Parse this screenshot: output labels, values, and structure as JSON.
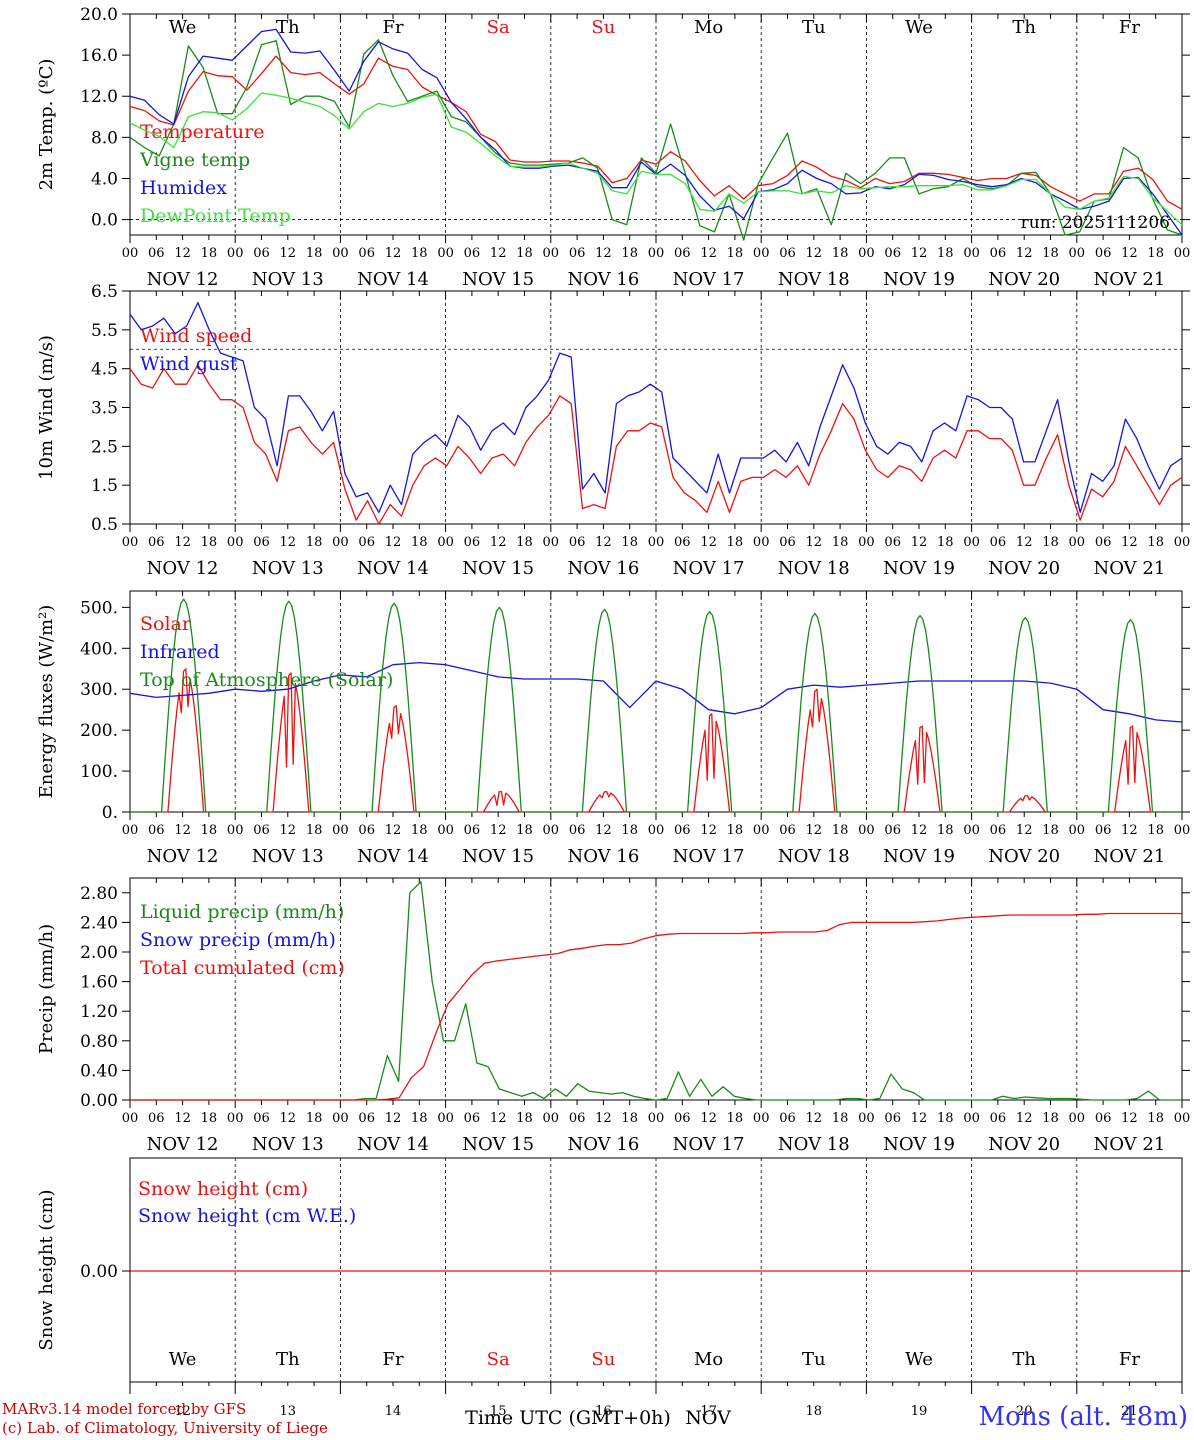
{
  "chart_data": [
    {
      "type": "line",
      "id": "temp",
      "ylabel": "2m Temp. (ºC)",
      "ylim": [
        -1.5,
        20
      ],
      "yticks": [
        "20.0",
        "16.0",
        "12.0",
        "8.0",
        "4.0",
        "0.0"
      ],
      "yticks_values": [
        20,
        16,
        12,
        8,
        4,
        0
      ],
      "ref_line": 0,
      "day_labels": [
        "We",
        "Th",
        "Fr",
        "Sa",
        "Su",
        "Mo",
        "Tu",
        "We",
        "Th",
        "Fr"
      ],
      "annotation": "run: 2025111206",
      "series": [
        {
          "name": "Temperature",
          "color": "#ee1111",
          "y": [
            11,
            10.6,
            9.6,
            9.2,
            12.5,
            14.4,
            14.0,
            13.9,
            12.6,
            14.2,
            15.9,
            14.3,
            14.1,
            14.3,
            13.2,
            12.2,
            13.2,
            15.7,
            14.9,
            14.6,
            12.9,
            12.1,
            11.4,
            10.5,
            8.3,
            7.6,
            5.8,
            5.6,
            5.6,
            5.7,
            5.7,
            5.5,
            5.2,
            3.6,
            4.0,
            5.8,
            5.4,
            6.6,
            5.7,
            3.8,
            2.3,
            3.3,
            2.0,
            3.3,
            3.5,
            4.3,
            5.7,
            5.1,
            4.2,
            3.8,
            3.1,
            4.0,
            3.5,
            3.7,
            4.5,
            4.5,
            4.4,
            4.1,
            3.8,
            4.0,
            4.0,
            4.5,
            4.3,
            3.2,
            2.5,
            1.8,
            2.5,
            2.5,
            4.7,
            5.0,
            3.9,
            1.8,
            1.0
          ]
        },
        {
          "name": "Vigne temp",
          "color": "#1a8a1a",
          "y": [
            8.0,
            7.0,
            6.2,
            9.3,
            16.9,
            14.8,
            10.3,
            10.3,
            12.9,
            17.0,
            17.4,
            11.2,
            12.0,
            12.0,
            11.5,
            9.0,
            16.1,
            17.5,
            14.0,
            11.5,
            12.0,
            12.5,
            10.0,
            9.5,
            8.0,
            6.5,
            5.5,
            5.3,
            5.3,
            5.4,
            5.5,
            6.0,
            5.0,
            0.0,
            -0.5,
            6.0,
            4.5,
            9.3,
            4.5,
            -0.6,
            -1.2,
            2.5,
            -2.0,
            3.5,
            6.0,
            8.4,
            2.5,
            3.0,
            -0.5,
            4.5,
            3.5,
            4.5,
            6.0,
            6.0,
            2.5,
            3.0,
            3.2,
            4.0,
            3.2,
            3.0,
            3.3,
            4.5,
            4.6,
            2.5,
            -1.5,
            -1.2,
            1.8,
            2.0,
            7.0,
            6.0,
            2.0,
            -1.0,
            -1.5
          ]
        },
        {
          "name": "Humidex",
          "color": "#1515dd",
          "y": [
            12,
            11.6,
            10.2,
            9.3,
            13.9,
            15.9,
            15.7,
            15.5,
            16.9,
            18.3,
            18.5,
            16.3,
            16.2,
            16.4,
            14.5,
            12.5,
            15.4,
            17.3,
            16.6,
            16.2,
            14.6,
            13.8,
            11.4,
            9.8,
            8.0,
            6.8,
            5.2,
            5.0,
            5.0,
            5.2,
            5.3,
            5.0,
            4.7,
            3.1,
            3.1,
            5.6,
            4.4,
            5.4,
            4.3,
            2.3,
            0.9,
            1.3,
            0.1,
            2.7,
            2.9,
            3.5,
            4.8,
            4.0,
            3.5,
            2.5,
            2.6,
            3.2,
            3.0,
            3.4,
            4.4,
            4.3,
            3.9,
            3.7,
            3.4,
            3.2,
            3.4,
            4.0,
            3.6,
            2.5,
            1.8,
            1.0,
            1.3,
            1.8,
            4.0,
            4.1,
            2.5,
            0.5,
            -1.5
          ]
        },
        {
          "name": "DewPoint Temp",
          "color": "#39e339",
          "y": [
            9.4,
            8.7,
            8.1,
            7.0,
            10.0,
            10.5,
            10.4,
            9.7,
            10.8,
            12.3,
            12.1,
            11.8,
            11.4,
            11.0,
            10.1,
            8.8,
            10.5,
            11.3,
            11.0,
            11.3,
            11.9,
            12.2,
            9.0,
            8.5,
            7.4,
            6.2,
            5.2,
            5.1,
            5.1,
            5.3,
            5.5,
            5.0,
            4.5,
            2.8,
            2.5,
            4.7,
            4.4,
            4.4,
            3.5,
            1.0,
            0.8,
            2.5,
            1.6,
            2.7,
            2.8,
            2.8,
            2.5,
            2.8,
            2.6,
            3.3,
            3.0,
            3.1,
            3.2,
            3.2,
            3.3,
            3.3,
            3.3,
            3.4,
            2.9,
            2.9,
            3.3,
            3.9,
            3.9,
            2.5,
            1.2,
            1.0,
            1.8,
            2.1,
            4.2,
            4.0,
            2.1,
            0.8,
            -0.5
          ]
        }
      ]
    },
    {
      "type": "line",
      "id": "wind",
      "ylabel": "10m Wind (m/s)",
      "ylim": [
        0.5,
        6.5
      ],
      "yticks": [
        "6.5",
        "5.5",
        "4.5",
        "3.5",
        "2.5",
        "1.5",
        "0.5"
      ],
      "yticks_values": [
        6.5,
        5.5,
        4.5,
        3.5,
        2.5,
        1.5,
        0.5
      ],
      "ref_line": 5,
      "series": [
        {
          "name": "Wind speed",
          "color": "#ee1111",
          "y": [
            4.5,
            4.1,
            4.0,
            4.5,
            4.1,
            4.1,
            4.6,
            4.1,
            3.7,
            3.7,
            3.5,
            2.6,
            2.3,
            1.6,
            2.9,
            3.0,
            2.6,
            2.3,
            2.6,
            1.4,
            0.6,
            1.1,
            0.5,
            1.0,
            0.7,
            1.5,
            2.0,
            2.2,
            2.0,
            2.5,
            2.2,
            1.8,
            2.2,
            2.3,
            2.0,
            2.6,
            3.0,
            3.3,
            3.8,
            3.6,
            0.9,
            1.0,
            0.9,
            2.5,
            2.9,
            2.9,
            3.1,
            3.0,
            1.7,
            1.3,
            1.1,
            0.8,
            1.6,
            0.8,
            1.6,
            1.7,
            1.7,
            1.9,
            1.7,
            2.0,
            1.5,
            2.3,
            2.9,
            3.6,
            3.2,
            2.4,
            1.9,
            1.7,
            2.0,
            1.9,
            1.6,
            2.2,
            2.4,
            2.2,
            2.9,
            2.9,
            2.7,
            2.7,
            2.4,
            1.5,
            1.5,
            2.2,
            2.8,
            1.5,
            0.6,
            1.4,
            1.2,
            1.6,
            2.5,
            2.0,
            1.5,
            1.0,
            1.5,
            1.7
          ]
        },
        {
          "name": "Wind gust",
          "color": "#1515dd",
          "y": [
            5.9,
            5.5,
            5.6,
            5.8,
            5.4,
            5.6,
            6.2,
            5.5,
            4.9,
            4.8,
            4.7,
            3.5,
            3.2,
            2.0,
            3.8,
            3.8,
            3.4,
            2.9,
            3.4,
            1.8,
            1.2,
            1.3,
            0.8,
            1.5,
            1.0,
            2.3,
            2.6,
            2.8,
            2.5,
            3.3,
            3.0,
            2.4,
            2.9,
            3.1,
            2.8,
            3.5,
            3.8,
            4.2,
            4.9,
            4.8,
            1.4,
            1.8,
            1.3,
            3.6,
            3.8,
            3.9,
            4.1,
            3.9,
            2.2,
            1.9,
            1.6,
            1.3,
            2.3,
            1.3,
            2.2,
            2.2,
            2.2,
            2.4,
            2.1,
            2.6,
            2.0,
            3.0,
            3.8,
            4.6,
            4.0,
            3.1,
            2.5,
            2.3,
            2.6,
            2.5,
            2.1,
            2.9,
            3.1,
            2.9,
            3.8,
            3.7,
            3.5,
            3.5,
            3.2,
            2.1,
            2.1,
            2.9,
            3.7,
            2.1,
            0.8,
            1.8,
            1.6,
            2.0,
            3.2,
            2.7,
            2.0,
            1.4,
            2.0,
            2.2
          ]
        }
      ]
    },
    {
      "type": "line",
      "id": "energy",
      "ylabel": "Energy fluxes (W/m²)",
      "ylim": [
        0,
        540
      ],
      "yticks": [
        "500.",
        "400.",
        "300.",
        "200.",
        "100.",
        "0."
      ],
      "yticks_values": [
        500,
        400,
        300,
        200,
        100,
        0
      ],
      "series": [
        {
          "name": "Solar",
          "color": "#ee1111",
          "peaks": [
            350,
            340,
            260,
            50,
            50,
            240,
            300,
            210,
            40,
            210
          ]
        },
        {
          "name": "Infrared",
          "color": "#1515dd",
          "y": [
            290,
            280,
            285,
            290,
            300,
            295,
            300,
            320,
            335,
            330,
            360,
            365,
            360,
            345,
            330,
            325,
            325,
            325,
            320,
            255,
            320,
            300,
            250,
            240,
            255,
            300,
            310,
            305,
            310,
            315,
            320,
            320,
            320,
            320,
            320,
            315,
            300,
            250,
            240,
            225,
            220
          ]
        },
        {
          "name": "Top of Atmosphere (Solar)",
          "color": "#1a8a1a",
          "peaks": [
            520,
            515,
            510,
            500,
            495,
            490,
            485,
            480,
            475,
            470
          ]
        }
      ]
    },
    {
      "type": "line",
      "id": "precip",
      "ylabel": "Precip (mm/h)",
      "ylim": [
        0,
        3.0
      ],
      "yticks": [
        "2.80",
        "2.40",
        "2.00",
        "1.60",
        "1.20",
        "0.80",
        "0.40",
        "0.00"
      ],
      "yticks_values": [
        2.8,
        2.4,
        2.0,
        1.6,
        1.2,
        0.8,
        0.4,
        0.0
      ],
      "series": [
        {
          "name": "Liquid precip (mm/h)",
          "color": "#1a8a1a",
          "y": [
            0,
            0,
            0,
            0,
            0,
            0,
            0,
            0,
            0,
            0,
            0,
            0,
            0,
            0,
            0,
            0,
            0,
            0,
            0,
            0,
            0,
            0.02,
            0.02,
            0.6,
            0.25,
            2.8,
            2.95,
            1.6,
            0.8,
            0.8,
            1.3,
            0.5,
            0.45,
            0.15,
            0.1,
            0.05,
            0.1,
            0.02,
            0.15,
            0.05,
            0.22,
            0.12,
            0.1,
            0.08,
            0.1,
            0.05,
            0.02,
            0,
            0.02,
            0.38,
            0.05,
            0.28,
            0.05,
            0.18,
            0.05,
            0.02,
            0,
            0,
            0,
            0,
            0,
            0,
            0,
            0,
            0.02,
            0.02,
            0,
            0.02,
            0.35,
            0.15,
            0.1,
            0,
            0,
            0,
            0,
            0,
            0,
            0,
            0.05,
            0.02,
            0.04,
            0.03,
            0.02,
            0.02,
            0.02,
            0.01,
            0,
            0,
            0,
            0,
            0.02,
            0.12,
            0,
            0,
            0
          ]
        },
        {
          "name": "Snow precip (mm/h)",
          "color": "#1515dd",
          "y": []
        },
        {
          "name": "Total cumulated (cm)",
          "color": "#ee1111",
          "y": [
            0,
            0,
            0,
            0,
            0,
            0,
            0,
            0,
            0,
            0,
            0,
            0,
            0,
            0,
            0,
            0,
            0,
            0,
            0,
            0,
            0,
            0.01,
            0.03,
            0.3,
            0.45,
            0.9,
            1.3,
            1.5,
            1.7,
            1.85,
            1.88,
            1.9,
            1.92,
            1.94,
            1.96,
            1.98,
            2.03,
            2.05,
            2.08,
            2.1,
            2.1,
            2.12,
            2.18,
            2.22,
            2.24,
            2.25,
            2.25,
            2.25,
            2.25,
            2.25,
            2.25,
            2.26,
            2.26,
            2.27,
            2.27,
            2.27,
            2.27,
            2.29,
            2.37,
            2.4,
            2.4,
            2.4,
            2.4,
            2.4,
            2.4,
            2.41,
            2.42,
            2.44,
            2.46,
            2.47,
            2.48,
            2.49,
            2.5,
            2.5,
            2.5,
            2.5,
            2.5,
            2.5,
            2.51,
            2.51,
            2.52,
            2.52,
            2.52,
            2.52,
            2.52,
            2.52,
            2.52
          ]
        }
      ]
    },
    {
      "type": "line",
      "id": "snow",
      "ylabel": "Snow height (cm)",
      "yticks": [
        "0.00"
      ],
      "yticks_values": [
        0
      ],
      "series": [
        {
          "name": "Snow height (cm)",
          "color": "#ee1111",
          "y": [
            0,
            0
          ]
        },
        {
          "name": "Snow height (cm W.E.)",
          "color": "#1515dd",
          "y": []
        }
      ],
      "day_labels": [
        "We",
        "Th",
        "Fr",
        "Sa",
        "Su",
        "Mo",
        "Tu",
        "We",
        "Th",
        "Fr"
      ],
      "day_numbers": [
        "12",
        "13",
        "14",
        "15",
        "16",
        "17",
        "18",
        "19",
        "20",
        "21"
      ]
    }
  ],
  "x_axis": {
    "hour_labels": [
      "00",
      "06",
      "12",
      "18"
    ],
    "final_label": "00",
    "date_labels": [
      "NOV 12",
      "NOV 13",
      "NOV 14",
      "NOV 15",
      "NOV 16",
      "NOV 17",
      "NOV 18",
      "NOV 19",
      "NOV 20",
      "NOV 21"
    ],
    "weekend_days": [
      "Sa",
      "Su"
    ],
    "xlabel": "Time UTC (GMT+0h)",
    "month": "NOV"
  },
  "colors": {
    "weekend": "#ee1111",
    "axis": "#000000",
    "location": "#3333ee",
    "credit": "#cc0000"
  },
  "footer": {
    "model_line": "MARv3.14 model forced by GFS",
    "credit_line": "(c) Lab. of Climatology, University of Liege",
    "location": "Mons (alt. 48m)"
  }
}
